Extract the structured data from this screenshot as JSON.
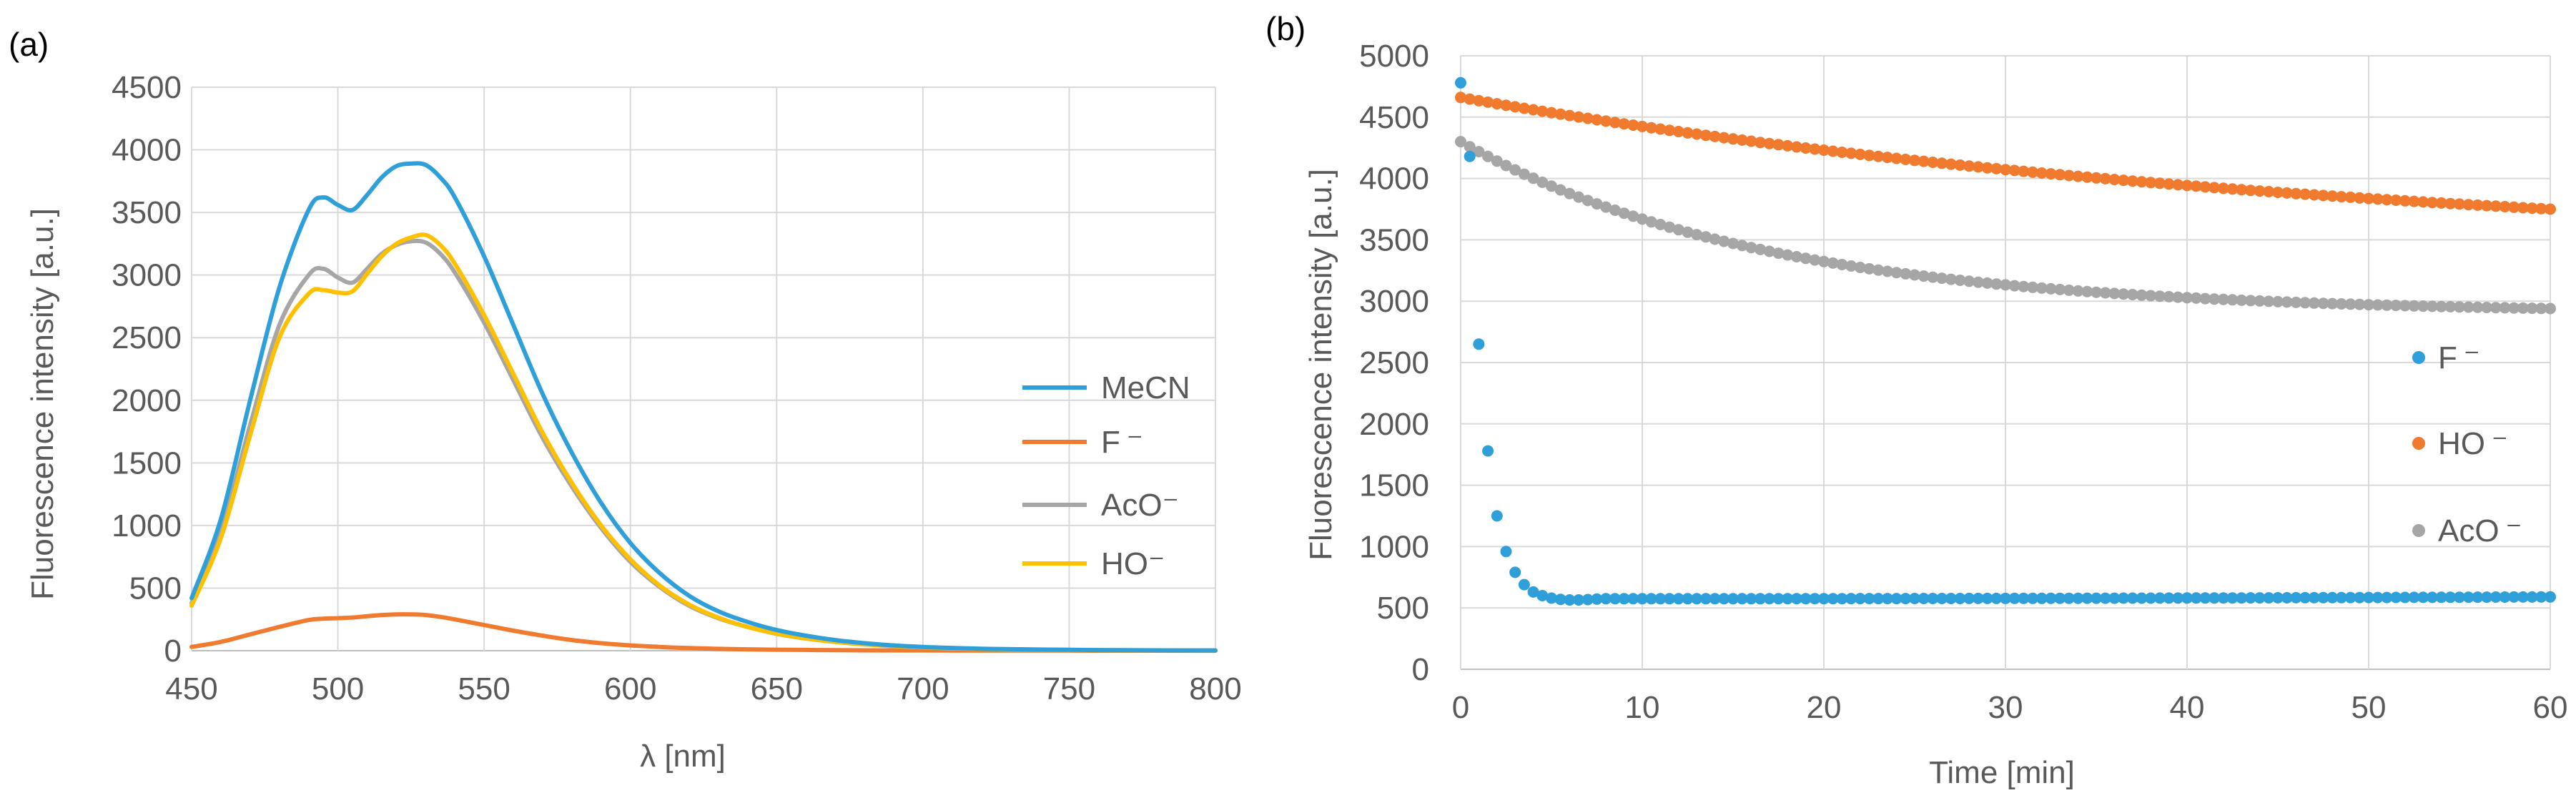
{
  "chart_data": [
    {
      "panel_label": "(a)",
      "type": "line",
      "xlabel": "λ [nm]",
      "ylabel": "Fluorescence intensity [a.u.]",
      "xlim": [
        450,
        800
      ],
      "ylim": [
        0,
        4500
      ],
      "xticks": [
        450,
        500,
        550,
        600,
        650,
        700,
        750,
        800
      ],
      "yticks": [
        0,
        500,
        1000,
        1500,
        2000,
        2500,
        3000,
        3500,
        4000,
        4500
      ],
      "grid": true,
      "legend_position": "right",
      "x": [
        450,
        460,
        470,
        480,
        490,
        495,
        500,
        505,
        510,
        515,
        520,
        525,
        530,
        535,
        540,
        550,
        560,
        570,
        580,
        590,
        600,
        610,
        620,
        630,
        640,
        650,
        660,
        670,
        680,
        690,
        700,
        710,
        720,
        730,
        740,
        750,
        760,
        770,
        780,
        790,
        800
      ],
      "series": [
        {
          "name": "MeCN",
          "color": "#2E9FD8",
          "values": [
            420,
            1050,
            2000,
            2900,
            3520,
            3620,
            3560,
            3520,
            3640,
            3780,
            3870,
            3890,
            3880,
            3780,
            3620,
            3150,
            2600,
            2050,
            1580,
            1180,
            860,
            620,
            440,
            315,
            230,
            165,
            120,
            85,
            60,
            42,
            30,
            22,
            16,
            12,
            9,
            7,
            5,
            4,
            3,
            2,
            2
          ]
        },
        {
          "name": "F ⁻",
          "color": "#F07A2D",
          "values": [
            30,
            70,
            130,
            190,
            245,
            255,
            260,
            265,
            275,
            285,
            290,
            290,
            285,
            270,
            250,
            205,
            160,
            120,
            85,
            60,
            42,
            30,
            21,
            15,
            11,
            8,
            6,
            4,
            3,
            2,
            2,
            1,
            1,
            1,
            1,
            1,
            0,
            0,
            0,
            0,
            0
          ]
        },
        {
          "name": "AcO⁻",
          "color": "#A6A6A6",
          "values": [
            380,
            950,
            1800,
            2600,
            3000,
            3050,
            2980,
            2940,
            3050,
            3170,
            3240,
            3270,
            3260,
            3170,
            3020,
            2620,
            2160,
            1700,
            1310,
            980,
            710,
            510,
            360,
            260,
            190,
            135,
            97,
            70,
            50,
            36,
            26,
            19,
            14,
            10,
            8,
            6,
            4,
            3,
            2,
            2,
            1
          ]
        },
        {
          "name": "HO⁻",
          "color": "#FFC000",
          "values": [
            360,
            900,
            1720,
            2500,
            2850,
            2880,
            2860,
            2870,
            3010,
            3150,
            3250,
            3300,
            3320,
            3240,
            3090,
            2680,
            2210,
            1740,
            1340,
            1000,
            730,
            520,
            370,
            265,
            190,
            137,
            98,
            71,
            51,
            37,
            27,
            20,
            14,
            10,
            8,
            6,
            4,
            3,
            2,
            2,
            1
          ]
        }
      ]
    },
    {
      "panel_label": "(b)",
      "type": "scatter",
      "xlabel": "Time [min]",
      "ylabel": "Fluorescence intensity [a.u.]",
      "xlim": [
        0,
        60
      ],
      "ylim": [
        0,
        5000
      ],
      "xticks": [
        0,
        10,
        20,
        30,
        40,
        50,
        60
      ],
      "yticks": [
        0,
        500,
        1000,
        1500,
        2000,
        2500,
        3000,
        3500,
        4000,
        4500,
        5000
      ],
      "grid": true,
      "legend_position": "right",
      "sampling_interval_min": 0.5,
      "series": [
        {
          "name": "F ⁻",
          "color": "#2E9FD8",
          "first_points": [
            [
              0,
              4780
            ],
            [
              0.5,
              4180
            ],
            [
              1,
              2650
            ],
            [
              1.5,
              1780
            ],
            [
              2,
              1250
            ],
            [
              2.5,
              960
            ],
            [
              3,
              790
            ],
            [
              3.5,
              690
            ],
            [
              4,
              630
            ],
            [
              4.5,
              600
            ],
            [
              5,
              580
            ],
            [
              5.5,
              570
            ],
            [
              6,
              565
            ],
            [
              6.5,
              565
            ],
            [
              7,
              568
            ],
            [
              7.5,
              572
            ]
          ],
          "plateau": 575,
          "final": 590
        },
        {
          "name": "HO ⁻",
          "color": "#F07A2D",
          "start": 4660,
          "end": 3750,
          "decay_rate": 0.02
        },
        {
          "name": "AcO ⁻",
          "color": "#A6A6A6",
          "start": 4300,
          "end": 2940,
          "decay_rate": 0.06
        }
      ]
    }
  ]
}
